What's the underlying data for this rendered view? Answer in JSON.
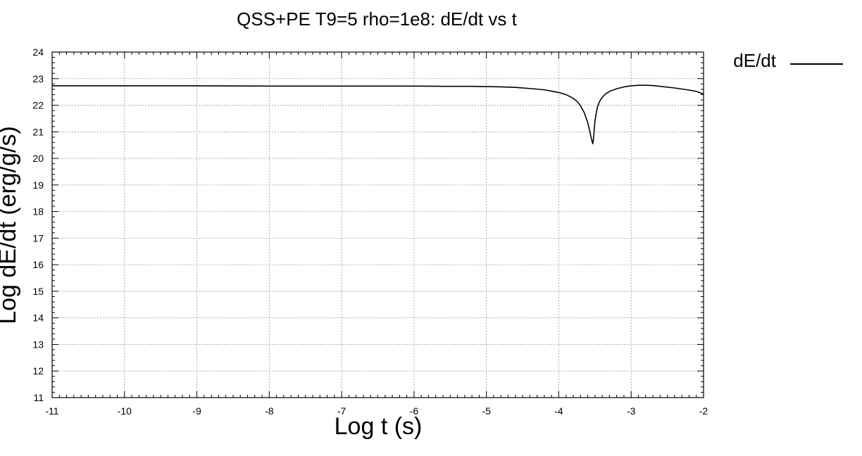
{
  "chart_data": {
    "type": "line",
    "title": "QSS+PE T9=5 rho=1e8: dE/dt vs t",
    "xlabel": "Log t (s)",
    "ylabel": "Log dE/dt (erg/g/s)",
    "xlim": [
      -11,
      -2
    ],
    "ylim": [
      11,
      24
    ],
    "xticks": [
      -11,
      -10,
      -9,
      -8,
      -7,
      -6,
      -5,
      -4,
      -3,
      -2
    ],
    "yticks": [
      11,
      12,
      13,
      14,
      15,
      16,
      17,
      18,
      19,
      20,
      21,
      22,
      23,
      24
    ],
    "xtick_labels": [
      "-11",
      "-10",
      "-9",
      "-8",
      "-7",
      "-6",
      "-5",
      "-4",
      "-3",
      "-2"
    ],
    "ytick_labels": [
      "11",
      "12",
      "13",
      "14",
      "15",
      "16",
      "17",
      "18",
      "19",
      "20",
      "21",
      "22",
      "23",
      "24"
    ],
    "grid": true,
    "legend_position": "top-right-outside",
    "series": [
      {
        "name": "dE/dt",
        "color": "#000000",
        "x": [
          -11,
          -10,
          -9,
          -8,
          -7,
          -6,
          -5.5,
          -5.2,
          -5.0,
          -4.8,
          -4.6,
          -4.4,
          -4.2,
          -4.0,
          -3.9,
          -3.8,
          -3.75,
          -3.7,
          -3.65,
          -3.6,
          -3.57,
          -3.55,
          -3.53,
          -3.52,
          -3.51,
          -3.5,
          -3.48,
          -3.46,
          -3.44,
          -3.4,
          -3.35,
          -3.3,
          -3.2,
          -3.1,
          -3.0,
          -2.9,
          -2.8,
          -2.7,
          -2.6,
          -2.5,
          -2.4,
          -2.3,
          -2.2,
          -2.1,
          -2.0
        ],
        "y": [
          22.73,
          22.73,
          22.73,
          22.72,
          22.72,
          22.72,
          22.71,
          22.71,
          22.7,
          22.69,
          22.67,
          22.63,
          22.58,
          22.48,
          22.4,
          22.26,
          22.15,
          21.98,
          21.73,
          21.35,
          21.0,
          20.75,
          20.55,
          20.75,
          21.1,
          21.4,
          21.75,
          21.98,
          22.12,
          22.3,
          22.43,
          22.52,
          22.62,
          22.69,
          22.73,
          22.75,
          22.75,
          22.74,
          22.71,
          22.68,
          22.65,
          22.61,
          22.57,
          22.52,
          22.42
        ]
      }
    ]
  }
}
